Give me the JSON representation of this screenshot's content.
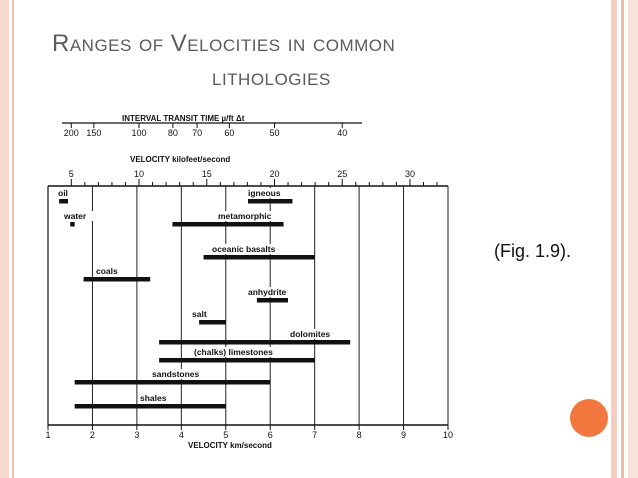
{
  "slide": {
    "title_line1": "Ranges of Velocities in common",
    "title_line2": "lithologies",
    "figure_ref": "(Fig. 1.9)."
  },
  "diagram": {
    "top_axis1_label": "INTERVAL TRANSIT TIME µ/ft Δt",
    "top_axis1_ticks": [
      "200",
      "150",
      "100",
      "80",
      "70",
      "60",
      "50",
      "40"
    ],
    "top_axis2_label": "VELOCITY kilofeet/second",
    "top_axis2_ticks": [
      "5",
      "10",
      "15",
      "20",
      "25",
      "30"
    ],
    "bottom_axis_label": "VELOCITY km/second",
    "bottom_axis_ticks": [
      "1",
      "2",
      "3",
      "4",
      "5",
      "6",
      "7",
      "8",
      "9",
      "10"
    ],
    "bottom_axis_range_kms": [
      1,
      10
    ],
    "lithologies": [
      {
        "label": "oil",
        "range_kms": [
          1.25,
          1.45
        ]
      },
      {
        "label": "igneous",
        "range_kms": [
          5.5,
          6.5
        ]
      },
      {
        "label": "water",
        "range_kms": [
          1.5,
          1.6
        ]
      },
      {
        "label": "metamorphic",
        "range_kms": [
          3.8,
          6.3
        ]
      },
      {
        "label": "oceanic basalts",
        "range_kms": [
          4.5,
          7.0
        ]
      },
      {
        "label": "coals",
        "range_kms": [
          1.8,
          3.3
        ]
      },
      {
        "label": "anhydrite",
        "range_kms": [
          5.7,
          6.4
        ]
      },
      {
        "label": "salt",
        "range_kms": [
          4.4,
          5.0
        ]
      },
      {
        "label": "dolomites",
        "range_kms": [
          3.5,
          7.8
        ]
      },
      {
        "label": "(chalks) limestones",
        "range_kms": [
          3.5,
          7.0
        ]
      },
      {
        "label": "sandstones",
        "range_kms": [
          1.6,
          6.0
        ]
      },
      {
        "label": "shales",
        "range_kms": [
          1.6,
          5.0
        ]
      }
    ]
  }
}
